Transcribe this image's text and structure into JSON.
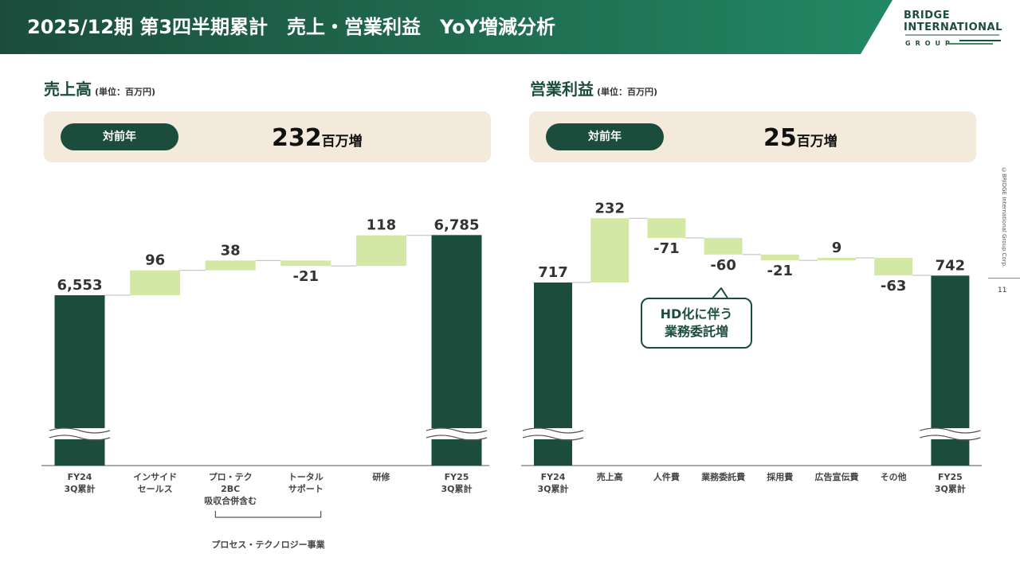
{
  "header": {
    "title": "2025/12期 第3四半期累計　売上・営業利益　YoY増減分析",
    "logo_line1": "BRIDGE",
    "logo_line2": "INTERNATIONAL",
    "logo_line3": "GROUP"
  },
  "left": {
    "title": "売上高",
    "unit": "(単位：百万円)",
    "pill": "対前年",
    "delta": "232",
    "delta_unit": "百万増"
  },
  "right": {
    "title": "営業利益",
    "unit": "(単位：百万円)",
    "pill": "対前年",
    "delta": "25",
    "delta_unit": "百万増"
  },
  "callout": "HD化に伴う\n業務委託増",
  "side_copyright": "©BRIDGE International Group Corp.",
  "page_number": "11",
  "colors": {
    "dark_green": "#1c4d3c",
    "light_green": "#d4e8a6",
    "beige": "#f4eadb"
  },
  "chart_data": [
    {
      "type": "bar",
      "subtype": "waterfall",
      "title": "売上高",
      "categories": [
        "FY24\n3Q累計",
        "インサイド\nセールス",
        "プロ・テク\n2BC\n吸収合併含む",
        "トータル\nサポート",
        "研修",
        "FY25\n3Q累計"
      ],
      "values": [
        6553,
        96,
        38,
        -21,
        118,
        6785
      ],
      "labels": [
        "6,553",
        "96",
        "38",
        "-21",
        "118",
        "6,785"
      ],
      "kinds": [
        "total",
        "delta",
        "delta",
        "delta",
        "delta",
        "total"
      ],
      "bracket_label": "プロセス・テクノロジー事業",
      "axis_break": true
    },
    {
      "type": "bar",
      "subtype": "waterfall",
      "title": "営業利益",
      "categories": [
        "FY24\n3Q累計",
        "売上高",
        "人件費",
        "業務委託費",
        "採用費",
        "広告宣伝費",
        "その他",
        "FY25\n3Q累計"
      ],
      "values": [
        717,
        232,
        -71,
        -60,
        -21,
        9,
        -63,
        742
      ],
      "labels": [
        "717",
        "232",
        "-71",
        "-60",
        "-21",
        "9",
        "-63",
        "742"
      ],
      "kinds": [
        "total",
        "delta",
        "delta",
        "delta",
        "delta",
        "delta",
        "delta",
        "total"
      ],
      "axis_break": true
    }
  ]
}
